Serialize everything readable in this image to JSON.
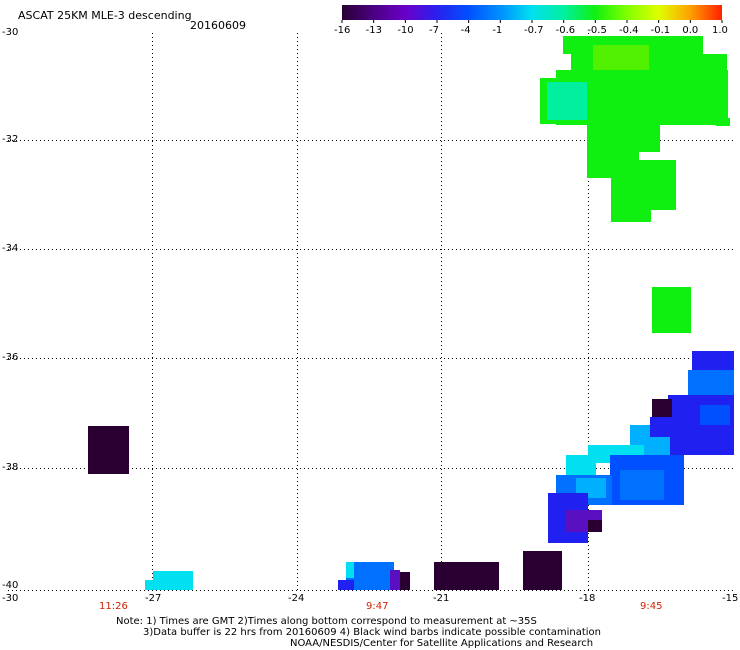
{
  "header": {
    "title": "ASCAT 25KM MLE-3 descending",
    "date": "20160609"
  },
  "colorbar": {
    "labels": [
      "-16",
      "-13",
      "-10",
      "-7",
      "-4",
      "-1",
      "-0.7",
      "-0.6",
      "-0.5",
      "-0.4",
      "-0.1",
      "0.0",
      "1.0"
    ],
    "colors": [
      "#2a0033",
      "#4b0082",
      "#6a00c8",
      "#2a20f0",
      "#0050ff",
      "#0090ff",
      "#00e0f0",
      "#00f0a0",
      "#10f010",
      "#80ff00",
      "#e0ff00",
      "#ffa000",
      "#ff2000"
    ]
  },
  "axes": {
    "lat_labels": [
      "-30",
      "-32",
      "-34",
      "-36",
      "-38",
      "-40"
    ],
    "lon_labels": [
      "-30",
      "-27",
      "-24",
      "-21",
      "-18",
      "-15"
    ]
  },
  "times": [
    "11:26",
    "9:47",
    "9:45"
  ],
  "notes": {
    "line1": "Note: 1) Times are GMT 2)Times along bottom correspond to measurement at ~35S",
    "line2": "3)Data buffer is 22 hrs from 20160609 4) Black wind barbs indicate possible contamination",
    "line3": "NOAA/NESDIS/Center for Satellite Applications and Research"
  },
  "legend_colors": {
    "green": "#10f010",
    "cyan_green": "#00f0a0",
    "cyan": "#00e0f0",
    "light_blue": "#00b0ff",
    "blue": "#0050ff",
    "deep_blue": "#2020f0",
    "violet": "#5a10c0",
    "dark_purple": "#2a0033"
  }
}
